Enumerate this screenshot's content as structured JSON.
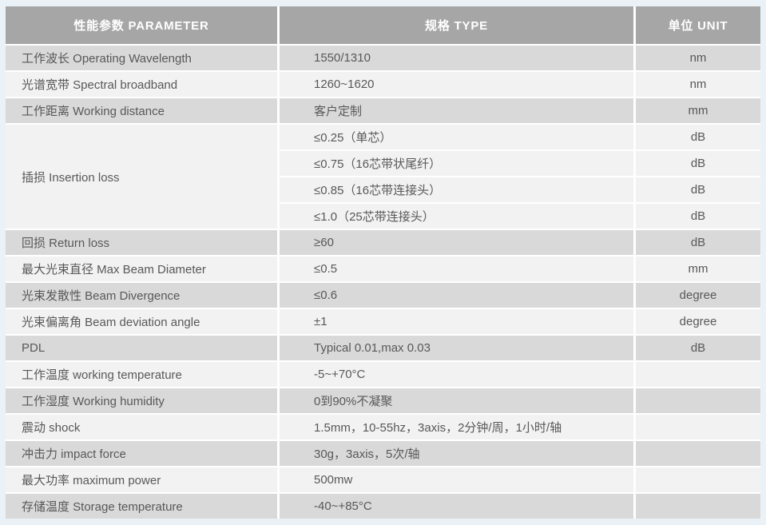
{
  "table": {
    "headers": [
      {
        "label": "性能参数 PARAMETER"
      },
      {
        "label": "规格 TYPE"
      },
      {
        "label": "单位 UNIT"
      }
    ],
    "rows": [
      {
        "parameter": "工作波长  Operating Wavelength",
        "specs": [
          {
            "type": "1550/1310",
            "unit": "nm"
          }
        ]
      },
      {
        "parameter": "光谱宽带  Spectral broadband",
        "specs": [
          {
            "type": "1260~1620",
            "unit": "nm"
          }
        ]
      },
      {
        "parameter": "工作距离  Working distance",
        "specs": [
          {
            "type": "客户定制",
            "unit": "mm"
          }
        ]
      },
      {
        "parameter": "插损  Insertion loss",
        "specs": [
          {
            "type": "≤0.25（单芯）",
            "unit": "dB"
          },
          {
            "type": "≤0.75（16芯带状尾纤）",
            "unit": "dB"
          },
          {
            "type": "≤0.85（16芯带连接头）",
            "unit": "dB"
          },
          {
            "type": "≤1.0（25芯带连接头）",
            "unit": "dB"
          }
        ]
      },
      {
        "parameter": "回损  Return loss",
        "specs": [
          {
            "type": "≥60",
            "unit": "dB"
          }
        ]
      },
      {
        "parameter": "最大光束直径  Max Beam Diameter",
        "specs": [
          {
            "type": "≤0.5",
            "unit": "mm"
          }
        ]
      },
      {
        "parameter": "光束发散性  Beam Divergence",
        "specs": [
          {
            "type": "≤0.6",
            "unit": "degree"
          }
        ]
      },
      {
        "parameter": "光束偏离角  Beam deviation angle",
        "specs": [
          {
            "type": "±1",
            "unit": "degree"
          }
        ]
      },
      {
        "parameter": "PDL",
        "specs": [
          {
            "type": "Typical 0.01,max 0.03",
            "unit": "dB"
          }
        ]
      },
      {
        "parameter": "工作温度  working temperature",
        "specs": [
          {
            "type": "-5~+70°C",
            "unit": ""
          }
        ]
      },
      {
        "parameter": "工作湿度  Working humidity",
        "specs": [
          {
            "type": "0到90%不凝聚",
            "unit": ""
          }
        ]
      },
      {
        "parameter": "震动  shock",
        "specs": [
          {
            "type": "1.5mm，10-55hz，3axis，2分钟/周，1小时/轴",
            "unit": ""
          }
        ]
      },
      {
        "parameter": "冲击力  impact force",
        "specs": [
          {
            "type": "30g，3axis，5次/轴",
            "unit": ""
          }
        ]
      },
      {
        "parameter": "最大功率  maximum power",
        "specs": [
          {
            "type": "500mw",
            "unit": ""
          }
        ]
      },
      {
        "parameter": "存储温度  Storage temperature",
        "specs": [
          {
            "type": "-40~+85°C",
            "unit": ""
          }
        ]
      }
    ],
    "stripe_colors": {
      "header": "#a6a6a6",
      "dark_row": "#d9d9d9",
      "light_row": "#f2f2f2"
    }
  }
}
